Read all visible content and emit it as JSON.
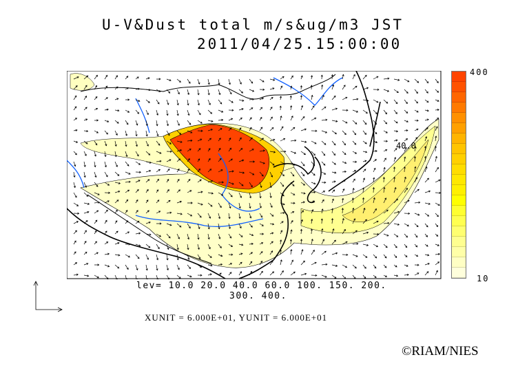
{
  "title": {
    "line1": "U-V&Dust total m/s&ug/m3 JST",
    "line2": "2011/04/25.15:00:00"
  },
  "contour_levels": {
    "line1": "lev= 10.0 20.0 40.0 60.0 100. 150. 200.",
    "line2": "300. 400."
  },
  "units_text": "XUNIT = 6.000E+01, YUNIT = 6.000E+01",
  "colorbar": {
    "max_label": "400",
    "min_label": "10",
    "colors": [
      "#ff4400",
      "#ff5200",
      "#ff6600",
      "#ff7a00",
      "#ff9000",
      "#ffa000",
      "#ffb400",
      "#ffc400",
      "#ffd000",
      "#ffdd00",
      "#ffe800",
      "#fff000",
      "#ffff00",
      "#ffff30",
      "#ffff50",
      "#ffff70",
      "#ffff90",
      "#ffffa8",
      "#ffffc4",
      "#ffffdc"
    ]
  },
  "map": {
    "contour_label": "40.0",
    "colors": {
      "coast": "#000000",
      "rivers": "#1060ff",
      "dust_core": "#ff4400",
      "dust_light": "#ffffb0"
    }
  },
  "credit": "©RIAM/NIES"
}
